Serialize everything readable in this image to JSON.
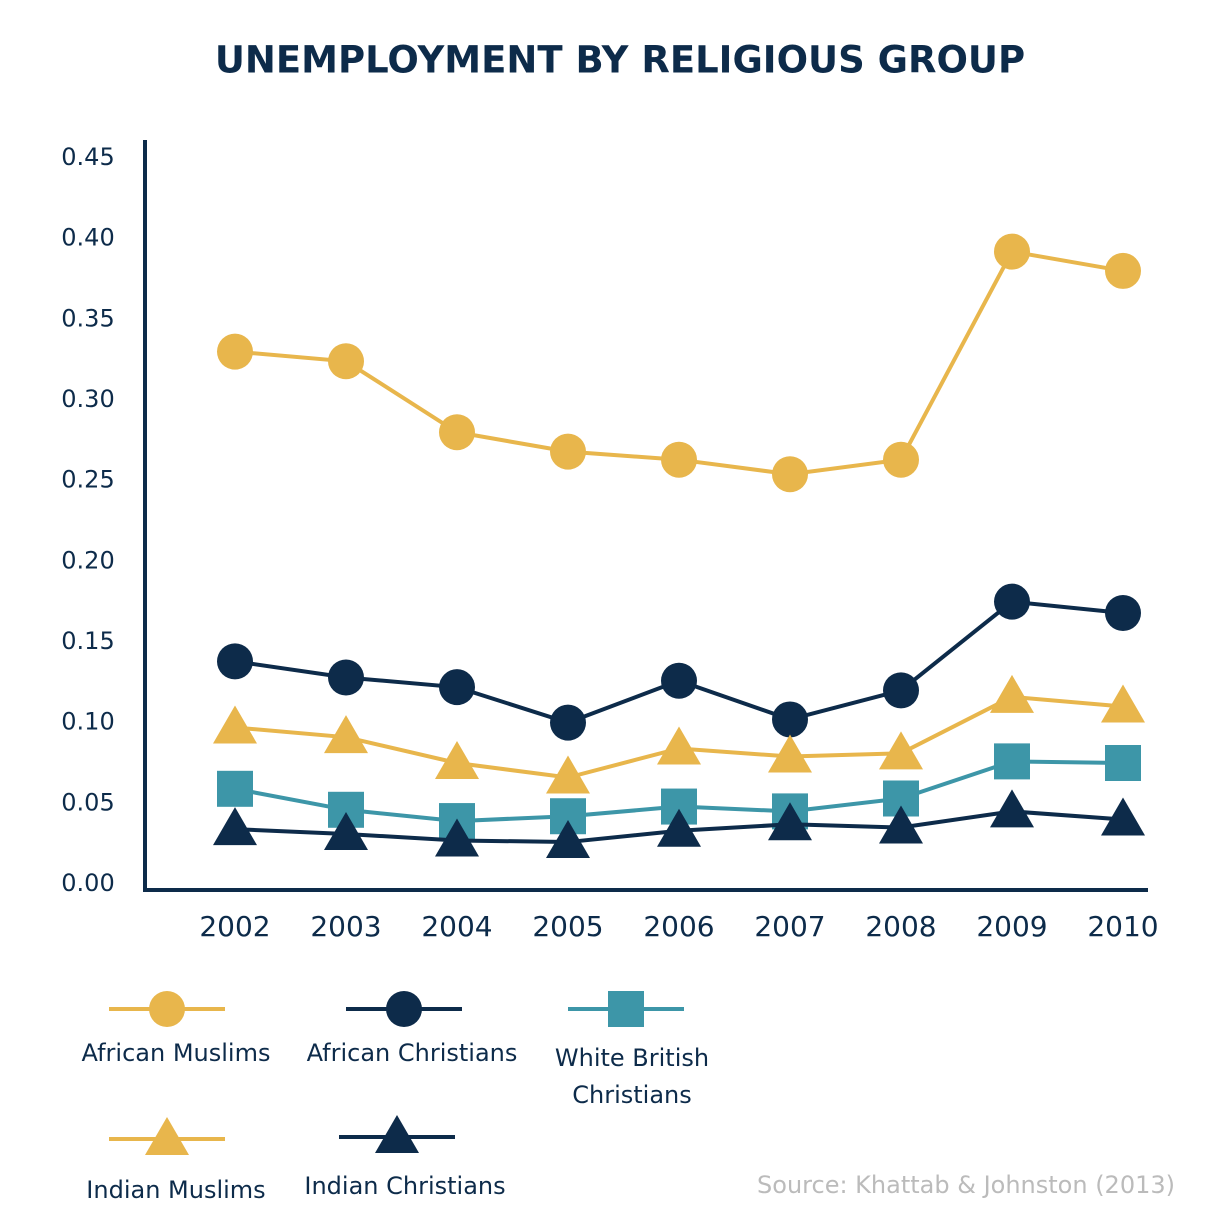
{
  "chart_data": {
    "type": "line",
    "title": "UNEMPLOYMENT BY RELIGIOUS GROUP",
    "categories": [
      "2002",
      "2003",
      "2004",
      "2005",
      "2006",
      "2007",
      "2008",
      "2009",
      "2010"
    ],
    "ylim": [
      0,
      0.45
    ],
    "yticks": [
      {
        "value": 0,
        "label": "0.00"
      },
      0.05,
      {
        "value": 0.1,
        "label": "0.10"
      },
      0.15,
      {
        "value": 0.2,
        "label": "0.20"
      },
      0.25,
      {
        "value": 0.3,
        "label": "0.30"
      },
      0.35,
      {
        "value": 0.4,
        "label": "0.40"
      },
      0.45
    ],
    "series": [
      {
        "name": "African Muslims",
        "color": "#e8b64c",
        "marker": "circle",
        "values": [
          0.33,
          0.324,
          0.28,
          0.268,
          0.263,
          0.254,
          0.263,
          0.392,
          0.38
        ]
      },
      {
        "name": "African Christians",
        "color": "#0d2b4a",
        "marker": "circle",
        "values": [
          0.138,
          0.128,
          0.122,
          0.1,
          0.126,
          0.102,
          0.12,
          0.175,
          0.168
        ]
      },
      {
        "name": "White British Christians",
        "color": "#3d96a8",
        "marker": "square",
        "values": [
          0.059,
          0.046,
          0.039,
          0.042,
          0.048,
          0.045,
          0.053,
          0.076,
          0.075
        ]
      },
      {
        "name": "Indian Muslims",
        "color": "#e8b64c",
        "marker": "triangle",
        "values": [
          0.097,
          0.091,
          0.075,
          0.066,
          0.084,
          0.079,
          0.081,
          0.116,
          0.11
        ]
      },
      {
        "name": "Indian Christians",
        "color": "#0d2b4a",
        "marker": "triangle",
        "values": [
          0.034,
          0.031,
          0.027,
          0.026,
          0.033,
          0.037,
          0.035,
          0.045,
          0.04
        ]
      }
    ],
    "source": "Source: Khattab & Johnston (2013)"
  }
}
